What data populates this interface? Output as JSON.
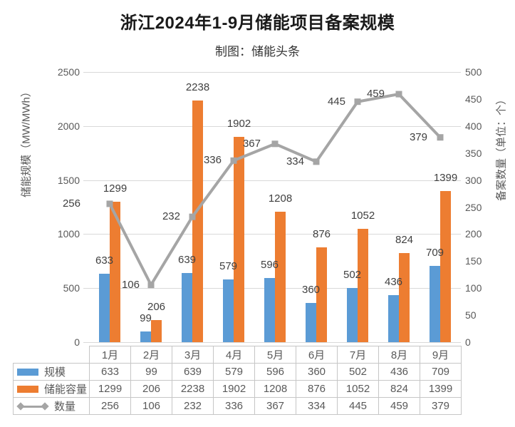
{
  "title": "浙江2024年1-9月储能项目备案规模",
  "subtitle": "制图：储能头条",
  "chart_data": {
    "type": "combo",
    "categories": [
      "1月",
      "2月",
      "3月",
      "4月",
      "5月",
      "6月",
      "7月",
      "8月",
      "9月"
    ],
    "series": [
      {
        "key": "scale",
        "name": "规模",
        "type": "bar",
        "axis": "left",
        "color": "#5b9bd5",
        "values": [
          633,
          99,
          639,
          579,
          596,
          360,
          502,
          436,
          709
        ]
      },
      {
        "key": "capacity",
        "name": "储能容量",
        "type": "bar",
        "axis": "left",
        "color": "#ed7d31",
        "values": [
          1299,
          206,
          2238,
          1902,
          1208,
          876,
          1052,
          824,
          1399
        ]
      },
      {
        "key": "count",
        "name": "数量",
        "type": "line",
        "axis": "right",
        "color": "#a5a5a5",
        "values": [
          256,
          106,
          232,
          336,
          367,
          334,
          445,
          459,
          379
        ]
      }
    ],
    "left_axis": {
      "title": "储能规模（MW/MWh）",
      "min": 0,
      "max": 2500,
      "step": 500
    },
    "right_axis": {
      "title": "备案数量（单位：个）",
      "min": 0,
      "max": 500,
      "step": 50
    },
    "grid": true,
    "legend_position": "table-left",
    "data_labels": true
  },
  "colors": {
    "bar_scale": "#5b9bd5",
    "bar_capacity": "#ed7d31",
    "line_count": "#a5a5a5",
    "gridline": "#d9d9d9",
    "axis_text": "#595959",
    "label_text": "#404040",
    "table_border": "#c6c6c6"
  }
}
